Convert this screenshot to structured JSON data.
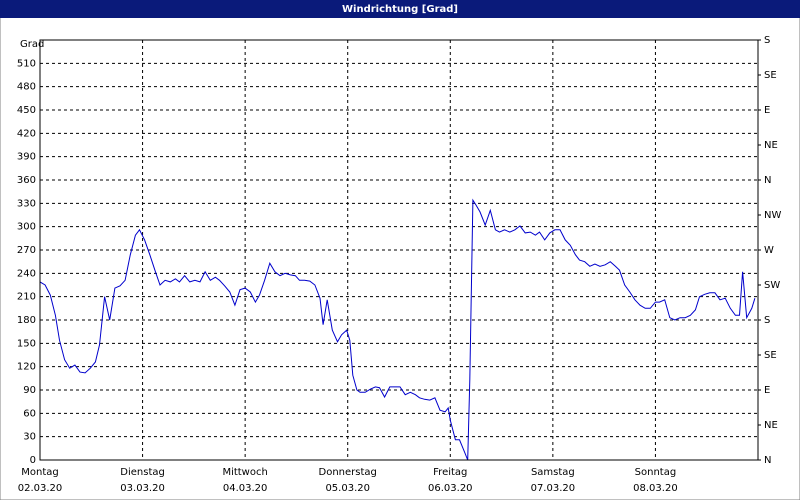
{
  "chart_data": {
    "type": "line",
    "title": "Windrichtung [Grad]",
    "y_label": "Grad",
    "xlim": [
      0,
      7
    ],
    "xticks": [
      {
        "value": 0,
        "label": "Montag"
      },
      {
        "value": 1,
        "label": "Dienstag"
      },
      {
        "value": 2,
        "label": "Mittwoch"
      },
      {
        "value": 3,
        "label": "Donnerstag"
      },
      {
        "value": 4,
        "label": "Freitag"
      },
      {
        "value": 5,
        "label": "Samstag"
      },
      {
        "value": 6,
        "label": "Sonntag"
      }
    ],
    "xtick_dates": [
      "02.03.20",
      "03.03.20",
      "04.03.20",
      "05.03.20",
      "06.03.20",
      "07.03.20",
      "08.03.20"
    ],
    "ylim": [
      0,
      540
    ],
    "yticks": [
      0,
      30,
      60,
      90,
      120,
      150,
      180,
      210,
      240,
      270,
      300,
      330,
      360,
      390,
      420,
      450,
      480,
      510
    ],
    "y2lim": [
      0,
      540
    ],
    "y2ticks": [
      {
        "value": 0,
        "label": "N"
      },
      {
        "value": 45,
        "label": "NE"
      },
      {
        "value": 90,
        "label": "E"
      },
      {
        "value": 135,
        "label": "SE"
      },
      {
        "value": 180,
        "label": "S"
      },
      {
        "value": 225,
        "label": "SW"
      },
      {
        "value": 270,
        "label": "W"
      },
      {
        "value": 315,
        "label": "NW"
      },
      {
        "value": 360,
        "label": "N"
      },
      {
        "value": 405,
        "label": "NE"
      },
      {
        "value": 450,
        "label": "E"
      },
      {
        "value": 495,
        "label": "SE"
      },
      {
        "value": 540,
        "label": "S"
      }
    ],
    "grid": true,
    "x": [
      0,
      0.05,
      0.1,
      0.15,
      0.19,
      0.24,
      0.29,
      0.34,
      0.39,
      0.44,
      0.49,
      0.54,
      0.58,
      0.63,
      0.68,
      0.73,
      0.78,
      0.83,
      0.88,
      0.93,
      0.97,
      1.02,
      1.07,
      1.12,
      1.17,
      1.22,
      1.27,
      1.32,
      1.36,
      1.41,
      1.46,
      1.51,
      1.56,
      1.61,
      1.66,
      1.71,
      1.75,
      1.8,
      1.85,
      1.9,
      1.95,
      2.0,
      2.05,
      2.1,
      2.14,
      2.19,
      2.24,
      2.29,
      2.34,
      2.39,
      2.44,
      2.49,
      2.53,
      2.58,
      2.63,
      2.68,
      2.73,
      2.76,
      2.8,
      2.85,
      2.9,
      2.94,
      2.99,
      3.02,
      3.05,
      3.09,
      3.12,
      3.17,
      3.22,
      3.27,
      3.31,
      3.36,
      3.41,
      3.46,
      3.51,
      3.56,
      3.61,
      3.66,
      3.7,
      3.75,
      3.8,
      3.85,
      3.9,
      3.95,
      3.98,
      4.0,
      4.05,
      4.09,
      4.14,
      4.17,
      4.19,
      4.22,
      4.25,
      4.29,
      4.34,
      4.39,
      4.44,
      4.48,
      4.53,
      4.58,
      4.63,
      4.68,
      4.73,
      4.78,
      4.83,
      4.87,
      4.92,
      4.97,
      5.02,
      5.07,
      5.12,
      5.17,
      5.22,
      5.26,
      5.31,
      5.36,
      5.41,
      5.46,
      5.51,
      5.56,
      5.61,
      5.65,
      5.7,
      5.75,
      5.8,
      5.85,
      5.9,
      5.95,
      6.0,
      6.04,
      6.09,
      6.14,
      6.19,
      6.24,
      6.29,
      6.34,
      6.39,
      6.43,
      6.48,
      6.53,
      6.58,
      6.63,
      6.68,
      6.73,
      6.78,
      6.82,
      6.85,
      6.89,
      6.94,
      6.97
    ],
    "series": [
      {
        "name": "Windrichtung",
        "color": "#0000cc",
        "values": [
          229,
          225,
          212,
          186,
          154,
          129,
          118,
          122,
          113,
          112,
          118,
          126,
          148,
          210,
          180,
          221,
          224,
          231,
          264,
          289,
          296,
          283,
          264,
          244,
          225,
          231,
          229,
          233,
          229,
          237,
          229,
          231,
          229,
          242,
          231,
          235,
          231,
          224,
          216,
          199,
          219,
          221,
          216,
          203,
          212,
          231,
          253,
          242,
          237,
          240,
          238,
          237,
          231,
          231,
          230,
          225,
          208,
          174,
          206,
          167,
          152,
          161,
          167,
          154,
          109,
          90,
          87,
          87,
          91,
          94,
          93,
          81,
          94,
          94,
          94,
          84,
          87,
          84,
          80,
          78,
          77,
          80,
          64,
          62,
          67,
          51,
          26,
          26,
          10,
          0,
          103,
          334,
          328,
          319,
          302,
          321,
          296,
          293,
          296,
          293,
          296,
          301,
          292,
          293,
          289,
          293,
          283,
          292,
          296,
          296,
          283,
          276,
          264,
          257,
          255,
          249,
          252,
          249,
          251,
          255,
          249,
          244,
          225,
          216,
          206,
          199,
          195,
          195,
          203,
          203,
          206,
          183,
          180,
          183,
          183,
          186,
          193,
          210,
          213,
          215,
          215,
          206,
          208,
          195,
          186,
          186,
          242,
          183,
          195,
          208
        ]
      }
    ]
  }
}
